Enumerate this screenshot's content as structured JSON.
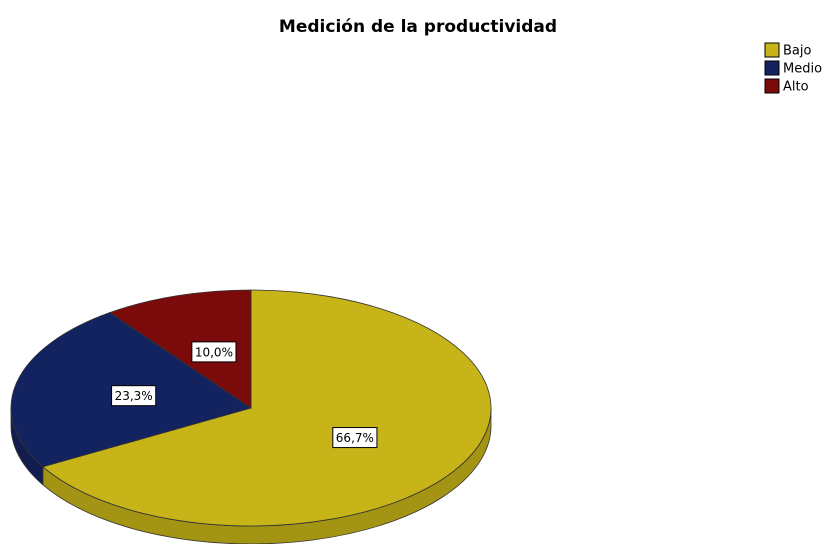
{
  "chart_data": {
    "type": "pie",
    "title": "Medición de la productividad",
    "categories": [
      "Bajo",
      "Medio",
      "Alto"
    ],
    "values": [
      66.7,
      23.3,
      10.0
    ],
    "value_labels": [
      "66,7%",
      "23,3%",
      "10,0%"
    ],
    "colors": [
      "#c7b418",
      "#13235f",
      "#7b0b0b"
    ],
    "legend": "top-right"
  }
}
